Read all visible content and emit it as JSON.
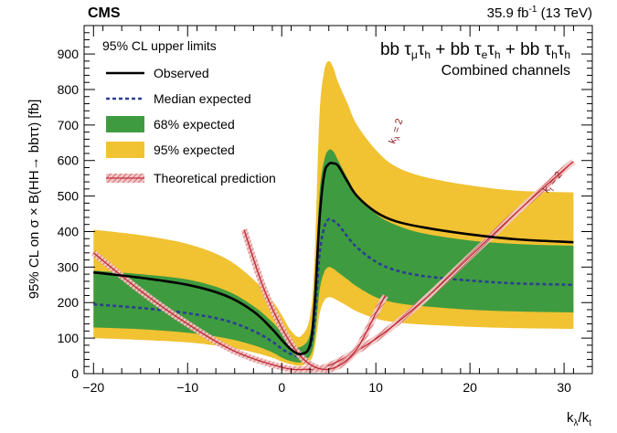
{
  "header": {
    "experiment": "CMS",
    "luminosity": "35.9 fb",
    "luminosity_exp": "-1",
    "energy": "(13 TeV)"
  },
  "channels": {
    "line1": "bb τ",
    "line1_full": [
      "bb ",
      "τ",
      "μ",
      "τ",
      "h",
      " + bb ",
      "τ",
      "e",
      "τ",
      "h",
      " + bb ",
      "τ",
      "h",
      "τ",
      "h"
    ],
    "line2": "Combined channels"
  },
  "legend": {
    "title": "95% CL upper limits",
    "items": [
      {
        "key": "observed",
        "label": "Observed",
        "color": "#000000"
      },
      {
        "key": "expected",
        "label": "Median expected",
        "color": "#2b3f93"
      },
      {
        "key": "band68",
        "label": "68% expected",
        "color": "#3f9b3f"
      },
      {
        "key": "band95",
        "label": "95% expected",
        "color": "#f1c232"
      },
      {
        "key": "theory",
        "label": "Theoretical prediction",
        "color": "#c0303a"
      }
    ]
  },
  "annotations": {
    "kl2": "k",
    "kl2_sub": "λ",
    "kl2_tail": " = 2",
    "kt2": "k",
    "kt2_sub": "t",
    "kt2_tail": " = 2"
  },
  "chart_data": {
    "type": "line",
    "xlabel": "k",
    "xlabel_sub1": "λ",
    "xlabel_sep": "/k",
    "xlabel_sub2": "t",
    "ylabel": "95% CL on σ × B(HH→ bbττ) [fb]",
    "xlim": [
      -21,
      33
    ],
    "ylim": [
      0,
      980
    ],
    "xticks": [
      -20,
      -10,
      0,
      10,
      20,
      30
    ],
    "yticks": [
      0,
      100,
      200,
      300,
      400,
      500,
      600,
      700,
      800,
      900
    ],
    "x": [
      -20,
      -15,
      -10,
      -6,
      -3,
      -1,
      0,
      1,
      2,
      3,
      3.5,
      4,
      4.5,
      5,
      5.5,
      6,
      7,
      8,
      10,
      12,
      15,
      20,
      25,
      31
    ],
    "series": [
      {
        "name": "Observed",
        "values": [
          285,
          270,
          250,
          220,
          175,
          125,
          95,
          68,
          55,
          80,
          200,
          430,
          560,
          590,
          592,
          585,
          540,
          500,
          455,
          430,
          412,
          392,
          378,
          370
        ]
      },
      {
        "name": "Median expected",
        "values": [
          195,
          185,
          170,
          150,
          120,
          90,
          70,
          55,
          50,
          75,
          150,
          330,
          410,
          435,
          430,
          420,
          385,
          355,
          315,
          292,
          275,
          262,
          254,
          250
        ]
      },
      {
        "name": "68% expected",
        "upper": [
          290,
          280,
          265,
          235,
          190,
          145,
          115,
          85,
          75,
          110,
          230,
          500,
          600,
          630,
          625,
          600,
          550,
          505,
          450,
          420,
          395,
          375,
          365,
          360
        ],
        "lower": [
          130,
          125,
          115,
          100,
          80,
          60,
          45,
          35,
          32,
          50,
          100,
          230,
          285,
          300,
          295,
          285,
          265,
          245,
          215,
          200,
          190,
          180,
          175,
          172
        ]
      },
      {
        "name": "95% expected",
        "upper": [
          405,
          390,
          365,
          325,
          265,
          205,
          165,
          120,
          105,
          160,
          330,
          720,
          850,
          880,
          860,
          820,
          760,
          700,
          630,
          585,
          555,
          530,
          515,
          510
        ]
      },
      {
        "name": "95% expected",
        "lower": [
          100,
          95,
          88,
          75,
          60,
          45,
          34,
          26,
          22,
          35,
          72,
          165,
          205,
          215,
          212,
          205,
          190,
          175,
          155,
          145,
          138,
          132,
          128,
          126
        ]
      }
    ],
    "theory": {
      "name": "Theoretical prediction",
      "kt1": {
        "x": [
          -20,
          -15,
          -10,
          -5,
          0,
          2.45,
          5,
          10,
          15,
          20,
          25,
          30,
          31
        ],
        "values": [
          340,
          233,
          140,
          63,
          18,
          12,
          22,
          98,
          205,
          330,
          455,
          575,
          597
        ]
      },
      "kt2": {
        "x": [
          -4,
          -2,
          0,
          2,
          4,
          6,
          8,
          10,
          11
        ],
        "values": [
          405,
          246,
          129,
          49,
          14,
          21,
          70,
          170,
          220
        ]
      }
    }
  }
}
